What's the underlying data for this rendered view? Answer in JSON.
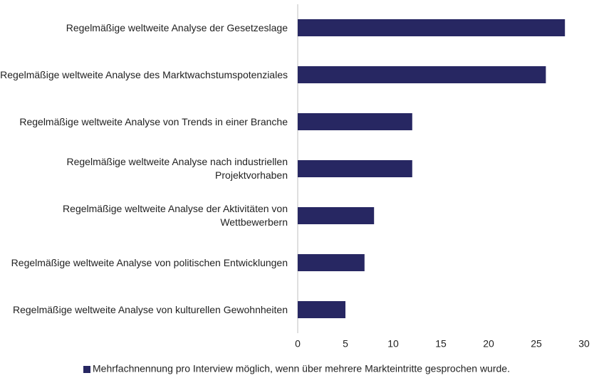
{
  "chart_data": {
    "type": "bar",
    "orientation": "horizontal",
    "categories": [
      "Regelmäßige weltweite Analyse der Gesetzeslage",
      "Regelmäßige weltweite Analyse des Marktwachstumspotenziales",
      "Regelmäßige weltweite Analyse von Trends in einer Branche",
      "Regelmäßige weltweite Analyse nach industriellen Projektvorhaben",
      "Regelmäßige weltweite Analyse der Aktivitäten von Wettbewerbern",
      "Regelmäßige weltweite Analyse von politischen Entwicklungen",
      "Regelmäßige weltweite Analyse von kulturellen Gewohnheiten"
    ],
    "series": [
      {
        "name": "Mehrfachnennung pro Interview möglich, wenn über mehrere Markteintritte gesprochen wurde.",
        "color": "#272762",
        "values": [
          28,
          26,
          12,
          12,
          8,
          7,
          5
        ]
      }
    ],
    "xlim": [
      0,
      30
    ],
    "xticks": [
      0,
      5,
      10,
      15,
      20,
      25,
      30
    ],
    "grid": false,
    "legend": "bottom"
  }
}
